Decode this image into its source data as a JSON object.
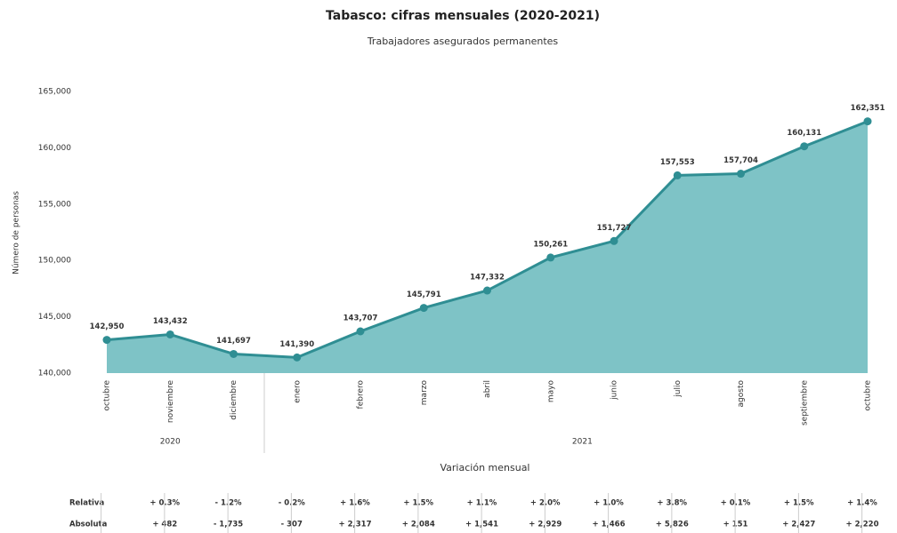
{
  "chart_data": {
    "type": "area",
    "title": "Tabasco: cifras mensuales (2020-2021)",
    "subtitle": "Trabajadores asegurados permanentes",
    "ylabel": "Número de personas",
    "categories": [
      "octubre",
      "noviembre",
      "diciembre",
      "enero",
      "febrero",
      "marzo",
      "abril",
      "mayo",
      "junio",
      "julio",
      "agosto",
      "septiembre",
      "octubre"
    ],
    "values": [
      142950,
      143432,
      141697,
      141390,
      143707,
      145791,
      147332,
      150261,
      151727,
      157553,
      157704,
      160131,
      162351
    ],
    "value_labels": [
      "142,950",
      "143,432",
      "141,697",
      "141,390",
      "143,707",
      "145,791",
      "147,332",
      "150,261",
      "151,727",
      "157,553",
      "157,704",
      "160,131",
      "162,351"
    ],
    "years": [
      "2020",
      "2021"
    ],
    "color": "#7ec3c6",
    "line_color": "#2f8e93",
    "ylim": [
      140000,
      165000
    ],
    "yticks": [
      {
        "value": 140000,
        "label": "140,000"
      },
      {
        "value": 145000,
        "label": "145,000"
      },
      {
        "value": 150000,
        "label": "150,000"
      },
      {
        "value": 155000,
        "label": "155,000"
      },
      {
        "value": 160000,
        "label": "160,000"
      },
      {
        "value": 165000,
        "label": "165,000"
      }
    ],
    "grid": false
  },
  "table": {
    "title": "Variación mensual",
    "rows": [
      {
        "label": "Relativa",
        "cells": [
          "+ 0.3%",
          "- 1.2%",
          "- 0.2%",
          "+ 1.6%",
          "+ 1.5%",
          "+ 1.1%",
          "+ 2.0%",
          "+ 1.0%",
          "+ 3.8%",
          "+ 0.1%",
          "+ 1.5%",
          "+ 1.4%"
        ]
      },
      {
        "label": "Absoluta",
        "cells": [
          "+ 482",
          "- 1,735",
          "- 307",
          "+ 2,317",
          "+ 2,084",
          "+ 1,541",
          "+ 2,929",
          "+ 1,466",
          "+ 5,826",
          "+ 151",
          "+ 2,427",
          "+ 2,220"
        ]
      }
    ]
  }
}
